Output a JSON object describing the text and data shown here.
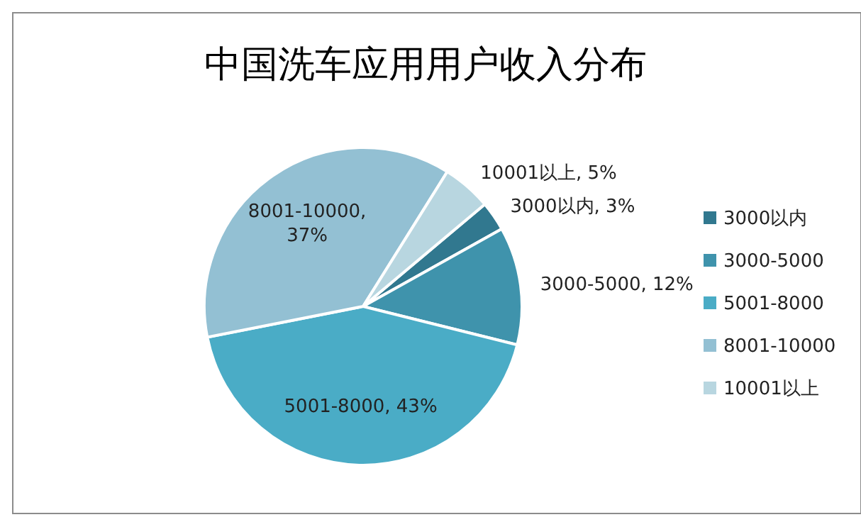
{
  "chart_data": {
    "type": "pie",
    "title": "中国洗车应用用户收入分布",
    "categories": [
      "3000以内",
      "3000-5000",
      "5001-8000",
      "8001-10000",
      "10001以上"
    ],
    "values": [
      3,
      12,
      43,
      37,
      5
    ],
    "colors": [
      "#31788f",
      "#3f93ac",
      "#4aacc6",
      "#93c0d3",
      "#b8d6e0"
    ],
    "value_labels": [
      "3000以内, 3%",
      "3000-5000, 12%",
      "5001-8000, 43%",
      "8001-10000, 37%",
      "10001以上, 5%"
    ],
    "legend": "right"
  }
}
